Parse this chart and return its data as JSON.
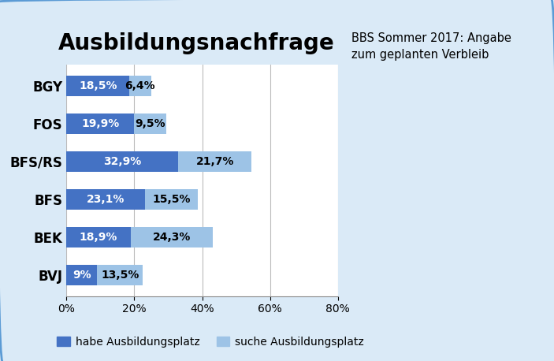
{
  "categories": [
    "BGY",
    "FOS",
    "BFS/RS",
    "BFS",
    "BEK",
    "BVJ"
  ],
  "habe": [
    18.5,
    19.9,
    32.9,
    23.1,
    18.9,
    9.0
  ],
  "suche": [
    6.4,
    9.5,
    21.7,
    15.5,
    24.3,
    13.5
  ],
  "habe_labels": [
    "18,5%",
    "19,9%",
    "32,9%",
    "23,1%",
    "18,9%",
    "9%"
  ],
  "suche_labels": [
    "6,4%",
    "9,5%",
    "21,7%",
    "15,5%",
    "24,3%",
    "13,5%"
  ],
  "habe_color": "#4472C4",
  "suche_color": "#9DC3E6",
  "title": "Ausbildungsnachfrage",
  "annotation_line1": "BBS Sommer 2017: Angabe",
  "annotation_line2": "zum geplanten Verbleib",
  "legend_habe": "habe Ausbildungsplatz",
  "legend_suche": "suche Ausbildungsplatz",
  "xlim": [
    0,
    80
  ],
  "xticks": [
    0,
    20,
    40,
    60,
    80
  ],
  "xtick_labels": [
    "0%",
    "20%",
    "40%",
    "60%",
    "80%"
  ],
  "background_color": "#DAEAF7",
  "plot_bg_color": "#FFFFFF",
  "bar_height": 0.55,
  "title_fontsize": 20,
  "label_fontsize": 10,
  "tick_fontsize": 10,
  "annotation_fontsize": 10.5,
  "legend_fontsize": 10,
  "ylabel_fontsize": 12
}
